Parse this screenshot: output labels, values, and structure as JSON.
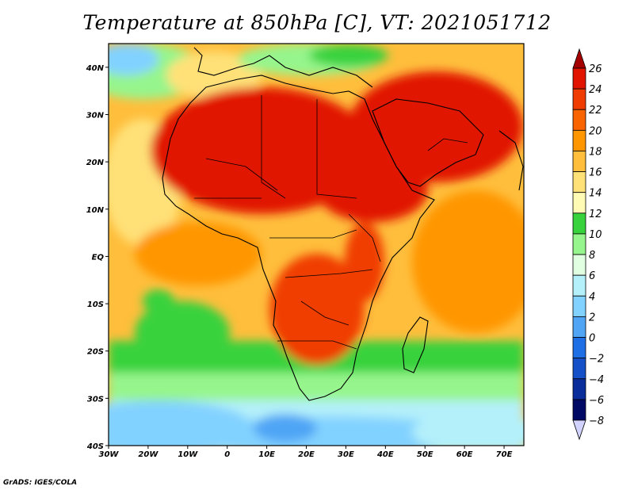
{
  "title": "Temperature at 850hPa [C], VT: 2021051712",
  "credit": "GrADS: IGES/COLA",
  "map": {
    "variable": "Temperature at 850hPa",
    "units": "C",
    "valid_time": "2021051712",
    "lon_range": [
      -30,
      75
    ],
    "lat_range": [
      -40,
      45
    ],
    "lat_ticks": [
      {
        "value": 40,
        "label": "40N"
      },
      {
        "value": 30,
        "label": "30N"
      },
      {
        "value": 20,
        "label": "20N"
      },
      {
        "value": 10,
        "label": "10N"
      },
      {
        "value": 0,
        "label": "EQ"
      },
      {
        "value": -10,
        "label": "10S"
      },
      {
        "value": -20,
        "label": "20S"
      },
      {
        "value": -30,
        "label": "30S"
      },
      {
        "value": -40,
        "label": "40S"
      }
    ],
    "lon_ticks": [
      {
        "value": -30,
        "label": "30W"
      },
      {
        "value": -20,
        "label": "20W"
      },
      {
        "value": -10,
        "label": "10W"
      },
      {
        "value": 0,
        "label": "0"
      },
      {
        "value": 10,
        "label": "10E"
      },
      {
        "value": 20,
        "label": "20E"
      },
      {
        "value": 30,
        "label": "30E"
      },
      {
        "value": 40,
        "label": "40E"
      },
      {
        "value": 50,
        "label": "50E"
      },
      {
        "value": 60,
        "label": "60E"
      },
      {
        "value": 70,
        "label": "70E"
      }
    ]
  },
  "colorbar": {
    "levels": [
      26,
      24,
      22,
      20,
      18,
      16,
      14,
      12,
      10,
      8,
      6,
      4,
      2,
      0,
      -2,
      -4,
      -6,
      -8
    ],
    "labels": [
      "26",
      "24",
      "22",
      "20",
      "18",
      "16",
      "14",
      "12",
      "10",
      "8",
      "6",
      "4",
      "2",
      "0",
      "−2",
      "−4",
      "−6",
      "−8"
    ],
    "colors": [
      "#a50000",
      "#e11400",
      "#f03c00",
      "#fa6400",
      "#ff9600",
      "#ffbe3c",
      "#ffe178",
      "#fffab4",
      "#37d23c",
      "#96f58c",
      "#e1ffe1",
      "#b4f0fa",
      "#82d2ff",
      "#50a5f5",
      "#1e6ee6",
      "#1450c8",
      "#0a2d9c",
      "#000a64",
      "#d2d2ff"
    ]
  }
}
